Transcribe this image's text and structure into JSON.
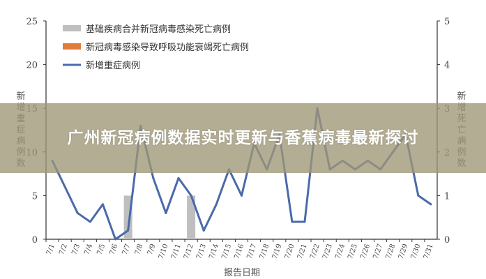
{
  "banner": {
    "title": "广州新冠病例数据实时更新与香蕉病毒最新探讨"
  },
  "chart_data": {
    "type": "bar+line",
    "categories": [
      "7/1",
      "7/2",
      "7/3",
      "7/4",
      "7/5",
      "7/6",
      "7/7",
      "7/8",
      "7/9",
      "7/10",
      "7/11",
      "7/12",
      "7/13",
      "7/14",
      "7/15",
      "7/16",
      "7/17",
      "7/18",
      "7/19",
      "7/20",
      "7/21",
      "7/22",
      "7/23",
      "7/24",
      "7/25",
      "7/26",
      "7/27",
      "7/28",
      "7/29",
      "7/30",
      "7/31"
    ],
    "xlabel": "报告日期",
    "ylabel": "新增重症病例数",
    "y2label": "新增死亡病例数",
    "ylim": [
      0,
      25
    ],
    "yticks": [
      0,
      5,
      10,
      15,
      20,
      25
    ],
    "y2lim": [
      0,
      5
    ],
    "y2ticks": [
      0,
      1,
      2,
      3,
      4,
      5
    ],
    "legend_position": "top-left",
    "grid": false,
    "series": [
      {
        "name": "基础疾病合并新冠病毒感染死亡病例",
        "type": "bar",
        "axis": "right",
        "color": "#bfbfbf",
        "values": [
          0,
          0,
          0,
          0,
          0,
          0,
          1,
          0,
          0,
          0,
          0,
          1,
          0,
          0,
          0,
          0,
          0,
          0,
          0,
          0,
          0,
          0,
          0,
          0,
          0,
          0,
          0,
          0,
          0,
          0,
          0
        ]
      },
      {
        "name": "新冠病毒感染导致呼吸功能衰竭死亡病例",
        "type": "bar",
        "axis": "right",
        "color": "#e07b39",
        "values": [
          0,
          0,
          0,
          0,
          0,
          0,
          0,
          0,
          0,
          0,
          0,
          0,
          0,
          0,
          0,
          0,
          0,
          0,
          0,
          0,
          0,
          0,
          0,
          0,
          0,
          0,
          0,
          0,
          0,
          0,
          0
        ]
      },
      {
        "name": "新增重症病例",
        "type": "line",
        "axis": "left",
        "color": "#4a6aab",
        "values": [
          9,
          6,
          3,
          2,
          4,
          0,
          1,
          13,
          7,
          3,
          7,
          5,
          1,
          4,
          8,
          5,
          11,
          8,
          12,
          2,
          2,
          15,
          8,
          9,
          8,
          9,
          8,
          10,
          12,
          5,
          4
        ]
      }
    ]
  }
}
